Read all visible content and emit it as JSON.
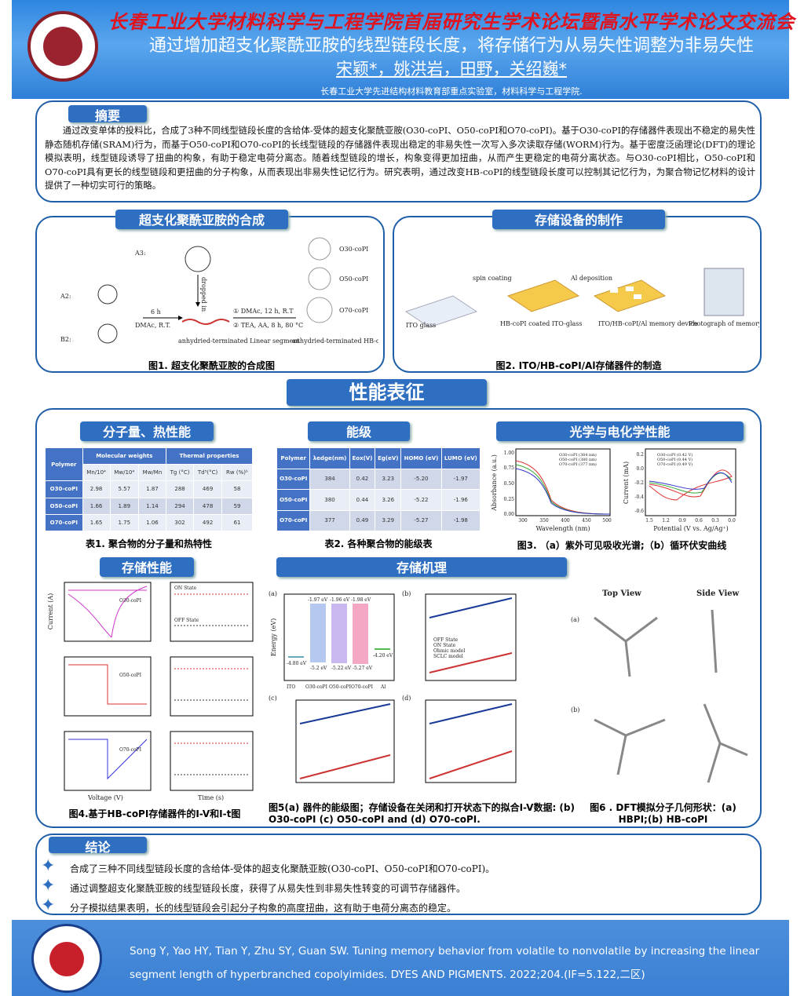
{
  "header": {
    "conference": "长春工业大学材料科学与工程学院首届研究生学术论坛暨高水平学术论文交流会",
    "title": "通过增加超支化聚酰亚胺的线型链段长度，将存储行为从易失性调整为非易失性",
    "authors": "宋颖*，姚洪岩，田野，关绍巍*",
    "affiliation": "长春工业大学先进结构材料教育部重点实验室，材料科学与工程学院."
  },
  "abstract": {
    "title": "摘要",
    "text": "通过改变单体的投料比，合成了3种不同线型链段长度的含给体-受体的超支化聚酰亚胺(O30-coPI、O50-coPI和O70-coPI)。基于O30-coPI的存储器件表现出不稳定的易失性静态随机存储(SRAM)行为，而基于O50-coPI和O70-coPI的长线型链段的存储器件表现出稳定的非易失性一次写入多次读取存储(WORM)行为。基于密度泛函理论(DFT)的理论模拟表明，线型链段诱导了扭曲的构象，有助于稳定电荷分离态。随着线型链段的增长，构象变得更加扭曲，从而产生更稳定的电荷分离状态。与O30-coPI相比，O50-coPI和O70-coPI具有更长的线型链段和更扭曲的分子构象，从而表现出非易失性记忆行为。研究表明，通过改变HB-coPI的线型链段长度可以控制其记忆行为，为聚合物记忆材料的设计提供了一种切实可行的策略。"
  },
  "synthesis": {
    "title": "超支化聚酰亚胺的合成",
    "caption": "图1. 超支化聚酰亚胺的合成图",
    "labels": [
      "A3:",
      "A2:",
      "B2:",
      "6 h",
      "DMAc, R.T.",
      "anhydried-terminated Linear segment",
      "① DMAc, 12 h, R.T",
      "② TEA, AA, 8 h, 80 °C",
      "anhydried-terminated HB-coPIs",
      "O30-coPI",
      "O50-coPI",
      "O70-coPI",
      "dropped in"
    ]
  },
  "device": {
    "title": "存储设备的制作",
    "caption": "图2. ITO/HB-coPI/Al存储器件的制造",
    "labels": [
      "ITO glass",
      "spin coating",
      "HB-coPI coated ITO-glass",
      "Al deposition",
      "ITO/HB-coPI/Al memory device",
      "Photograph of memory device"
    ]
  },
  "performance": {
    "title": "性能表征",
    "thermal": {
      "title": "分子量、热性能",
      "caption": "表1. 聚合物的分子量和热特性",
      "group_headers": [
        "Polymer",
        "Molecular weights",
        "Thermal properties"
      ],
      "sub_headers": [
        "Mn/10⁴",
        "Mw/10⁴",
        "Mw/Mn",
        "Tg (°C)",
        "Td⁵(°C)",
        "Rw (%)ᵇ"
      ],
      "rows": [
        [
          "O30-coPI",
          "2.98",
          "5.57",
          "1.87",
          "288",
          "469",
          "58"
        ],
        [
          "O50-coPI",
          "1.66",
          "1.89",
          "1.14",
          "294",
          "478",
          "59"
        ],
        [
          "O70-coPI",
          "1.65",
          "1.75",
          "1.06",
          "302",
          "492",
          "61"
        ]
      ]
    },
    "energy": {
      "title": "能级",
      "caption": "表2. 各种聚合物的能级表",
      "headers": [
        "Polymer",
        "λedge(nm)",
        "Eox(V)",
        "Eg(eV)",
        "HOMO (eV)",
        "LUMO (eV)"
      ],
      "rows": [
        [
          "O30-coPI",
          "384",
          "0.42",
          "3.23",
          "-5.20",
          "-1.97"
        ],
        [
          "O50-coPI",
          "380",
          "0.44",
          "3.26",
          "-5.22",
          "-1.96"
        ],
        [
          "O70-coPI",
          "377",
          "0.49",
          "3.29",
          "-5.27",
          "-1.98"
        ]
      ]
    },
    "optical": {
      "title": "光学与电化学性能",
      "caption": "图3. （a）紫外可见吸收光谱;（b）循环伏安曲线",
      "a": {
        "xlabel": "Wavelength (nm)",
        "ylabel": "Absorbance (a.u.)",
        "xticks": [
          "300",
          "350",
          "400",
          "450",
          "500"
        ],
        "yticks": [
          "0.00",
          "0.25",
          "0.50",
          "0.75",
          "1.00"
        ],
        "legend": [
          "O30-coPI (384 nm)",
          "O50-coPI (380 nm)",
          "O70-coPI (377 nm)"
        ]
      },
      "b": {
        "xlabel": "Potential (V vs. Ag/Ag⁺)",
        "ylabel": "Current (mA)",
        "xticks": [
          "1.5",
          "1.2",
          "0.9",
          "0.6",
          "0.3",
          "0.0"
        ],
        "yticks": [
          "0.2",
          "0.0",
          "-0.2",
          "-0.4",
          "-0.6"
        ],
        "legend": [
          "O30-coPI (0.42 V)",
          "O50-coPI (0.44 V)",
          "O70-coPI (0.49 V)"
        ]
      }
    },
    "storage": {
      "title": "存储性能",
      "caption": "图4.基于HB-coPI存储器件的I-V和I-t图",
      "labels": [
        "O30-coPI",
        "O50-coPI",
        "O70-coPI",
        "ON State",
        "OFF State",
        "Voltage (V)",
        "Time (s)",
        "Current (A)"
      ]
    },
    "mechanism": {
      "title": "存储机理",
      "caption5": "图5(a) 器件的能级图；存储设备在关闭和打开状态下的拟合I-V数据: (b) O30-coPI (c) O50-coPI and (d) O70-coPI.",
      "caption6": "图6 . DFT模拟分子几何形状：(a) HBPI;(b) HB-coPI",
      "energy_levels": {
        "ylabel": "Energy (eV)",
        "categories": [
          "ITO",
          "O30-coPI",
          "O50-coPI",
          "O70-coPI",
          "Al"
        ],
        "lumo": [
          "-1.97 eV",
          "-1.96 eV",
          "-1.98 eV"
        ],
        "homo": [
          "-5.2 eV",
          "-5.22 eV",
          "-5.27 eV"
        ],
        "ito": "-4.80 eV",
        "al": "-4.20 eV"
      },
      "fit_legend": [
        "OFF State",
        "ON State",
        "Ohmic model",
        "SCLC model"
      ],
      "views": [
        "Top View",
        "Side View"
      ],
      "panels": [
        "(a)",
        "(b)",
        "(c)",
        "(d)"
      ]
    }
  },
  "conclusion": {
    "title": "结论",
    "items": [
      "合成了三种不同线型链段长度的含给体-受体的超支化聚酰亚胺(O30-coPI、O50-coPI和O70-coPI)。",
      "通过调整超支化聚酰亚胺的线型链段长度，获得了从易失性到非易失性转变的可调节存储器件。",
      "分子模拟结果表明，长的线型链段会引起分子构象的高度扭曲，这有助于电荷分离态的稳定。"
    ]
  },
  "reference": {
    "line1": "Song Y, Yao HY, Tian Y, Zhu SY, Guan SW. Tuning memory behavior from volatile to nonvolatile by increasing the linear",
    "line2": "segment length of hyperbranched copolyimides. DYES AND PIGMENTS. 2022;204.(IF=5.122,二区)"
  },
  "colors": {
    "accent": "#2f6fc1",
    "table_header": "#4472c4",
    "conference_red": "#e0141e"
  }
}
